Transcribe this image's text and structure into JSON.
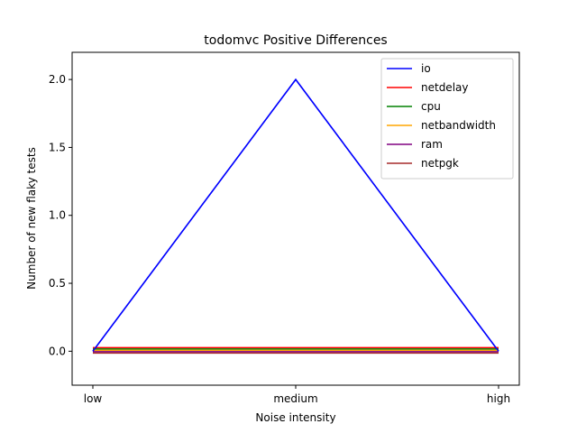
{
  "chart_data": {
    "type": "line",
    "title": "todomvc Positive Differences",
    "xlabel": "Noise intensity",
    "ylabel": "Number of new flaky tests",
    "categories": [
      "low",
      "medium",
      "high"
    ],
    "ylim": [
      -0.25,
      2.2
    ],
    "yticks": [
      0.0,
      0.5,
      1.0,
      1.5,
      2.0
    ],
    "ytick_labels": [
      "0.0",
      "0.5",
      "1.0",
      "1.5",
      "2.0"
    ],
    "grid": false,
    "legend_position": "top-right",
    "series": [
      {
        "name": "io",
        "color": "#0000ff",
        "values": [
          0,
          2,
          0
        ]
      },
      {
        "name": "netdelay",
        "color": "#ff0000",
        "values": [
          0,
          0,
          0
        ]
      },
      {
        "name": "cpu",
        "color": "#008000",
        "values": [
          0,
          0,
          0
        ]
      },
      {
        "name": "netbandwidth",
        "color": "#ffa500",
        "values": [
          0,
          0,
          0
        ]
      },
      {
        "name": "ram",
        "color": "#800080",
        "values": [
          0,
          0,
          0
        ]
      },
      {
        "name": "netpgk",
        "color": "#a52a2a",
        "values": [
          0,
          0,
          0
        ]
      }
    ]
  }
}
